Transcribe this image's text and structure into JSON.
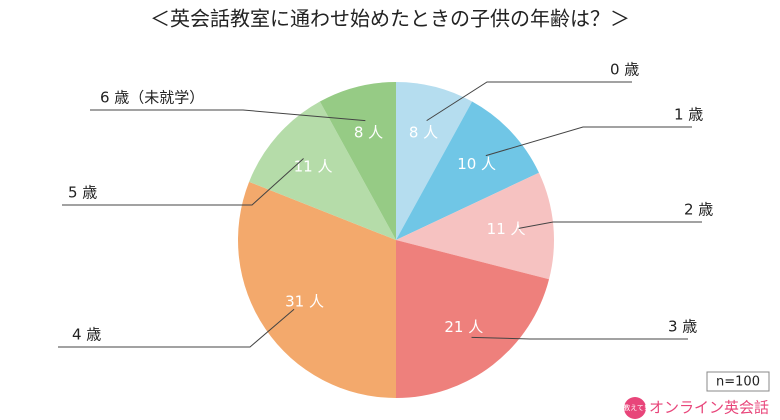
{
  "chart_data": {
    "type": "pie",
    "title": "＜英会話教室に通わせ始めたときの子供の年齢は？＞",
    "categories": [
      "0 歳",
      "1 歳",
      "2 歳",
      "3 歳",
      "4 歳",
      "5 歳",
      "6 歳（未就学）"
    ],
    "values": [
      8,
      10,
      11,
      21,
      31,
      11,
      8
    ],
    "value_labels": [
      "8 人",
      "10 人",
      "11 人",
      "21 人",
      "31 人",
      "11 人",
      "8 人"
    ],
    "colors": [
      "#b5ddef",
      "#70c6e6",
      "#f6c2c1",
      "#ee807c",
      "#f3a96c",
      "#b5dca9",
      "#96cb85"
    ],
    "annotation": "n=100",
    "logo_badge": "教えて!",
    "logo_text": "オンライン英会話"
  }
}
